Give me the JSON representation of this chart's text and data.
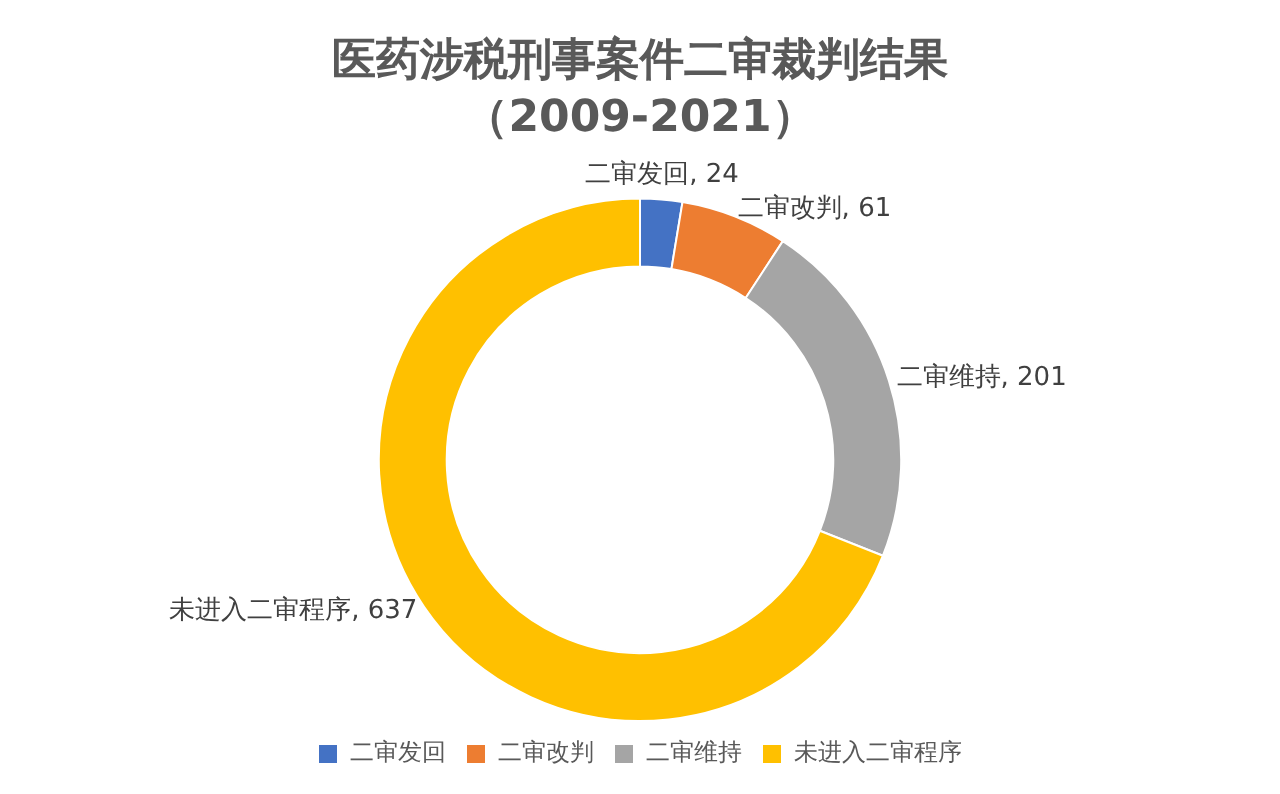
{
  "chart_data": {
    "type": "donut",
    "title": "医药涉税刑事案件二审裁判结果",
    "subtitle": "（2009-2021）",
    "categories": [
      "二审发回",
      "二审改判",
      "二审维持",
      "未进入二审程序"
    ],
    "values": [
      24,
      61,
      201,
      637
    ],
    "colors": [
      "#4472c4",
      "#ed7d31",
      "#a5a5a5",
      "#ffc000"
    ],
    "value_labels": [
      "二审发回, 24",
      "二审改判, 61",
      "二审维持, 201",
      "未进入二审程序, 637"
    ],
    "legend": "bottom"
  }
}
